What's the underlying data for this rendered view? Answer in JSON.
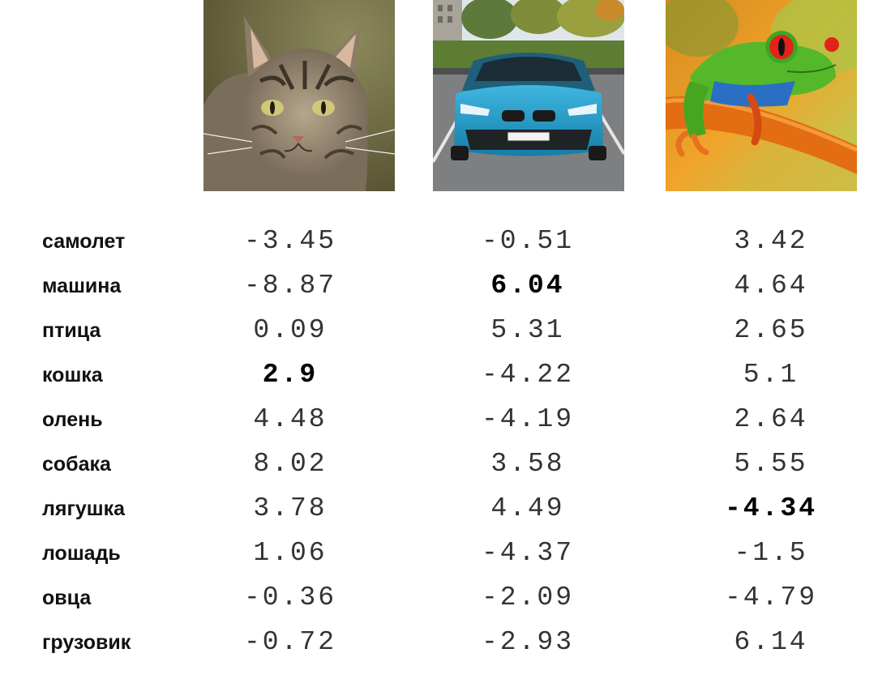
{
  "images": [
    {
      "icon": "cat-photo"
    },
    {
      "icon": "blue-car-photo"
    },
    {
      "icon": "tree-frog-photo"
    }
  ],
  "rows": [
    {
      "label": "самолет",
      "scores": [
        "-3.45",
        "-0.51",
        "3.42"
      ]
    },
    {
      "label": "машина",
      "scores": [
        "-8.87",
        "6.04",
        "4.64"
      ]
    },
    {
      "label": "птица",
      "scores": [
        "0.09",
        "5.31",
        "2.65"
      ]
    },
    {
      "label": "кошка",
      "scores": [
        "2.9",
        "-4.22",
        "5.1"
      ]
    },
    {
      "label": "олень",
      "scores": [
        "4.48",
        "-4.19",
        "2.64"
      ]
    },
    {
      "label": "собака",
      "scores": [
        "8.02",
        "3.58",
        "5.55"
      ]
    },
    {
      "label": "лягушка",
      "scores": [
        "3.78",
        "4.49",
        "-4.34"
      ]
    },
    {
      "label": "лошадь",
      "scores": [
        "1.06",
        "-4.37",
        "-1.5"
      ]
    },
    {
      "label": "овца",
      "scores": [
        "-0.36",
        "-2.09",
        "-4.79"
      ]
    },
    {
      "label": "грузовик",
      "scores": [
        "-0.72",
        "-2.93",
        "6.14"
      ]
    }
  ],
  "highlighted": {
    "cat_column": "2.9",
    "car_column": "6.04",
    "frog_column": "-4.34"
  },
  "colors": {
    "text": "#111111",
    "score": "#333333",
    "highlight": "#000000"
  }
}
